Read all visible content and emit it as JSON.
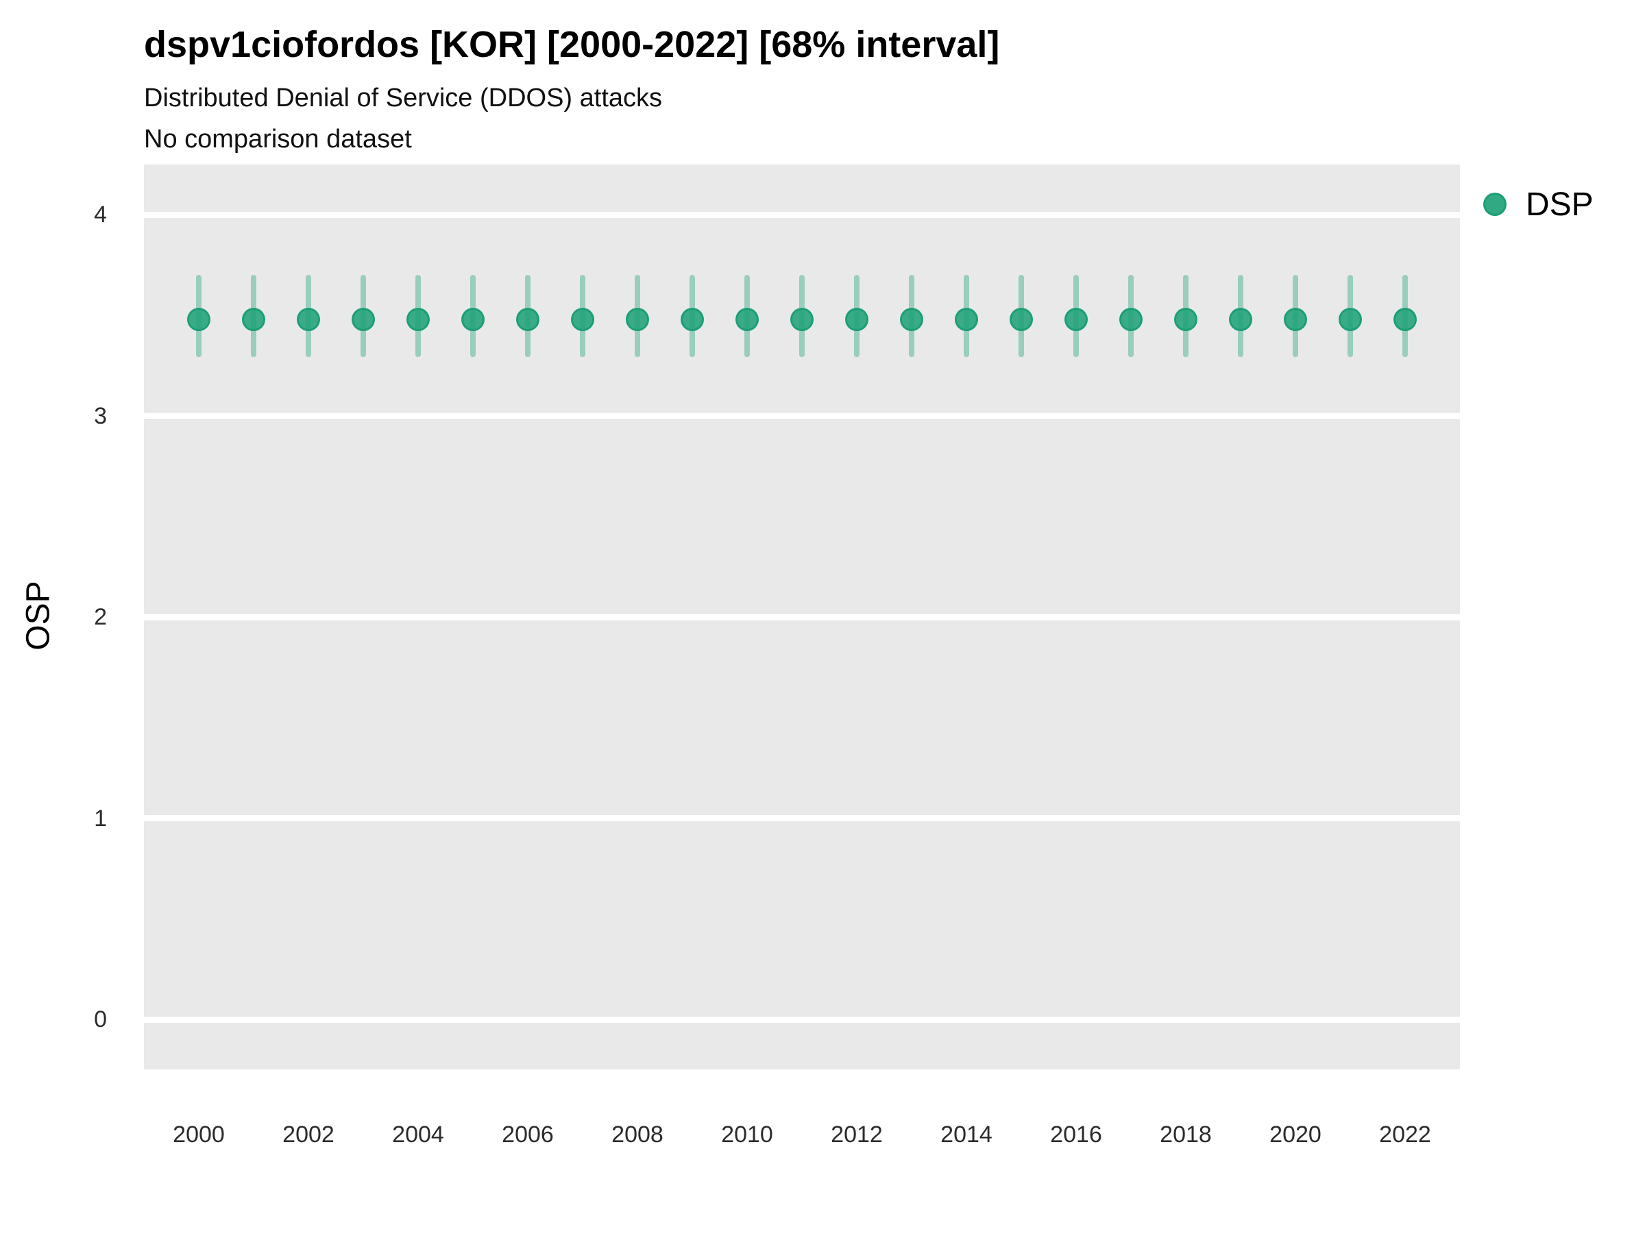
{
  "header": {
    "title": "dspv1ciofordos [KOR] [2000-2022] [68% interval]",
    "subtitle": "Distributed Denial of Service (DDOS) attacks",
    "comparison_note": "No comparison dataset"
  },
  "legend": {
    "position": "right-top",
    "items": [
      {
        "label": "DSP",
        "color": "#20a379"
      }
    ]
  },
  "axes": {
    "y_title": "OSP",
    "y_ticks": [
      "4",
      "3",
      "2",
      "1",
      "0"
    ],
    "y_tick_values": [
      4,
      3,
      2,
      1,
      0
    ],
    "x_ticks": [
      "2000",
      "2002",
      "2004",
      "2006",
      "2008",
      "2010",
      "2012",
      "2014",
      "2016",
      "2018",
      "2020",
      "2022"
    ],
    "x_tick_values": [
      2000,
      2002,
      2004,
      2006,
      2008,
      2010,
      2012,
      2014,
      2016,
      2018,
      2020,
      2022
    ]
  },
  "colors": {
    "point_fill": "#20a379",
    "interval_bar": "rgba(32,163,121,0.40)",
    "panel_background": "#e9e9e9",
    "gridline": "#ffffff",
    "text": "#000000"
  },
  "chart_data": {
    "type": "pointrange",
    "title": "dspv1ciofordos [KOR] [2000-2022] [68% interval]",
    "subtitle": "Distributed Denial of Service (DDOS) attacks",
    "note": "No comparison dataset",
    "xlabel": "",
    "ylabel": "OSP",
    "interval_level": "68%",
    "ylim": [
      -0.25,
      4.25
    ],
    "xlim": [
      1999,
      2023
    ],
    "grid": "horizontal major gridlines (white) on gray panel, no minor gridlines",
    "legend_position": "right-top",
    "series": [
      {
        "name": "DSP",
        "color": "#20a379",
        "points": [
          {
            "year": 2000,
            "value": 3.48,
            "low": 3.29,
            "high": 3.7
          },
          {
            "year": 2001,
            "value": 3.48,
            "low": 3.29,
            "high": 3.7
          },
          {
            "year": 2002,
            "value": 3.48,
            "low": 3.29,
            "high": 3.7
          },
          {
            "year": 2003,
            "value": 3.48,
            "low": 3.29,
            "high": 3.7
          },
          {
            "year": 2004,
            "value": 3.48,
            "low": 3.29,
            "high": 3.7
          },
          {
            "year": 2005,
            "value": 3.48,
            "low": 3.29,
            "high": 3.7
          },
          {
            "year": 2006,
            "value": 3.48,
            "low": 3.29,
            "high": 3.7
          },
          {
            "year": 2007,
            "value": 3.48,
            "low": 3.29,
            "high": 3.7
          },
          {
            "year": 2008,
            "value": 3.48,
            "low": 3.29,
            "high": 3.7
          },
          {
            "year": 2009,
            "value": 3.48,
            "low": 3.29,
            "high": 3.7
          },
          {
            "year": 2010,
            "value": 3.48,
            "low": 3.29,
            "high": 3.7
          },
          {
            "year": 2011,
            "value": 3.48,
            "low": 3.29,
            "high": 3.7
          },
          {
            "year": 2012,
            "value": 3.48,
            "low": 3.29,
            "high": 3.7
          },
          {
            "year": 2013,
            "value": 3.48,
            "low": 3.29,
            "high": 3.7
          },
          {
            "year": 2014,
            "value": 3.48,
            "low": 3.29,
            "high": 3.7
          },
          {
            "year": 2015,
            "value": 3.48,
            "low": 3.29,
            "high": 3.7
          },
          {
            "year": 2016,
            "value": 3.48,
            "low": 3.29,
            "high": 3.7
          },
          {
            "year": 2017,
            "value": 3.48,
            "low": 3.29,
            "high": 3.7
          },
          {
            "year": 2018,
            "value": 3.48,
            "low": 3.29,
            "high": 3.7
          },
          {
            "year": 2019,
            "value": 3.48,
            "low": 3.29,
            "high": 3.7
          },
          {
            "year": 2020,
            "value": 3.48,
            "low": 3.29,
            "high": 3.7
          },
          {
            "year": 2021,
            "value": 3.48,
            "low": 3.29,
            "high": 3.7
          },
          {
            "year": 2022,
            "value": 3.48,
            "low": 3.29,
            "high": 3.7
          }
        ]
      }
    ]
  }
}
